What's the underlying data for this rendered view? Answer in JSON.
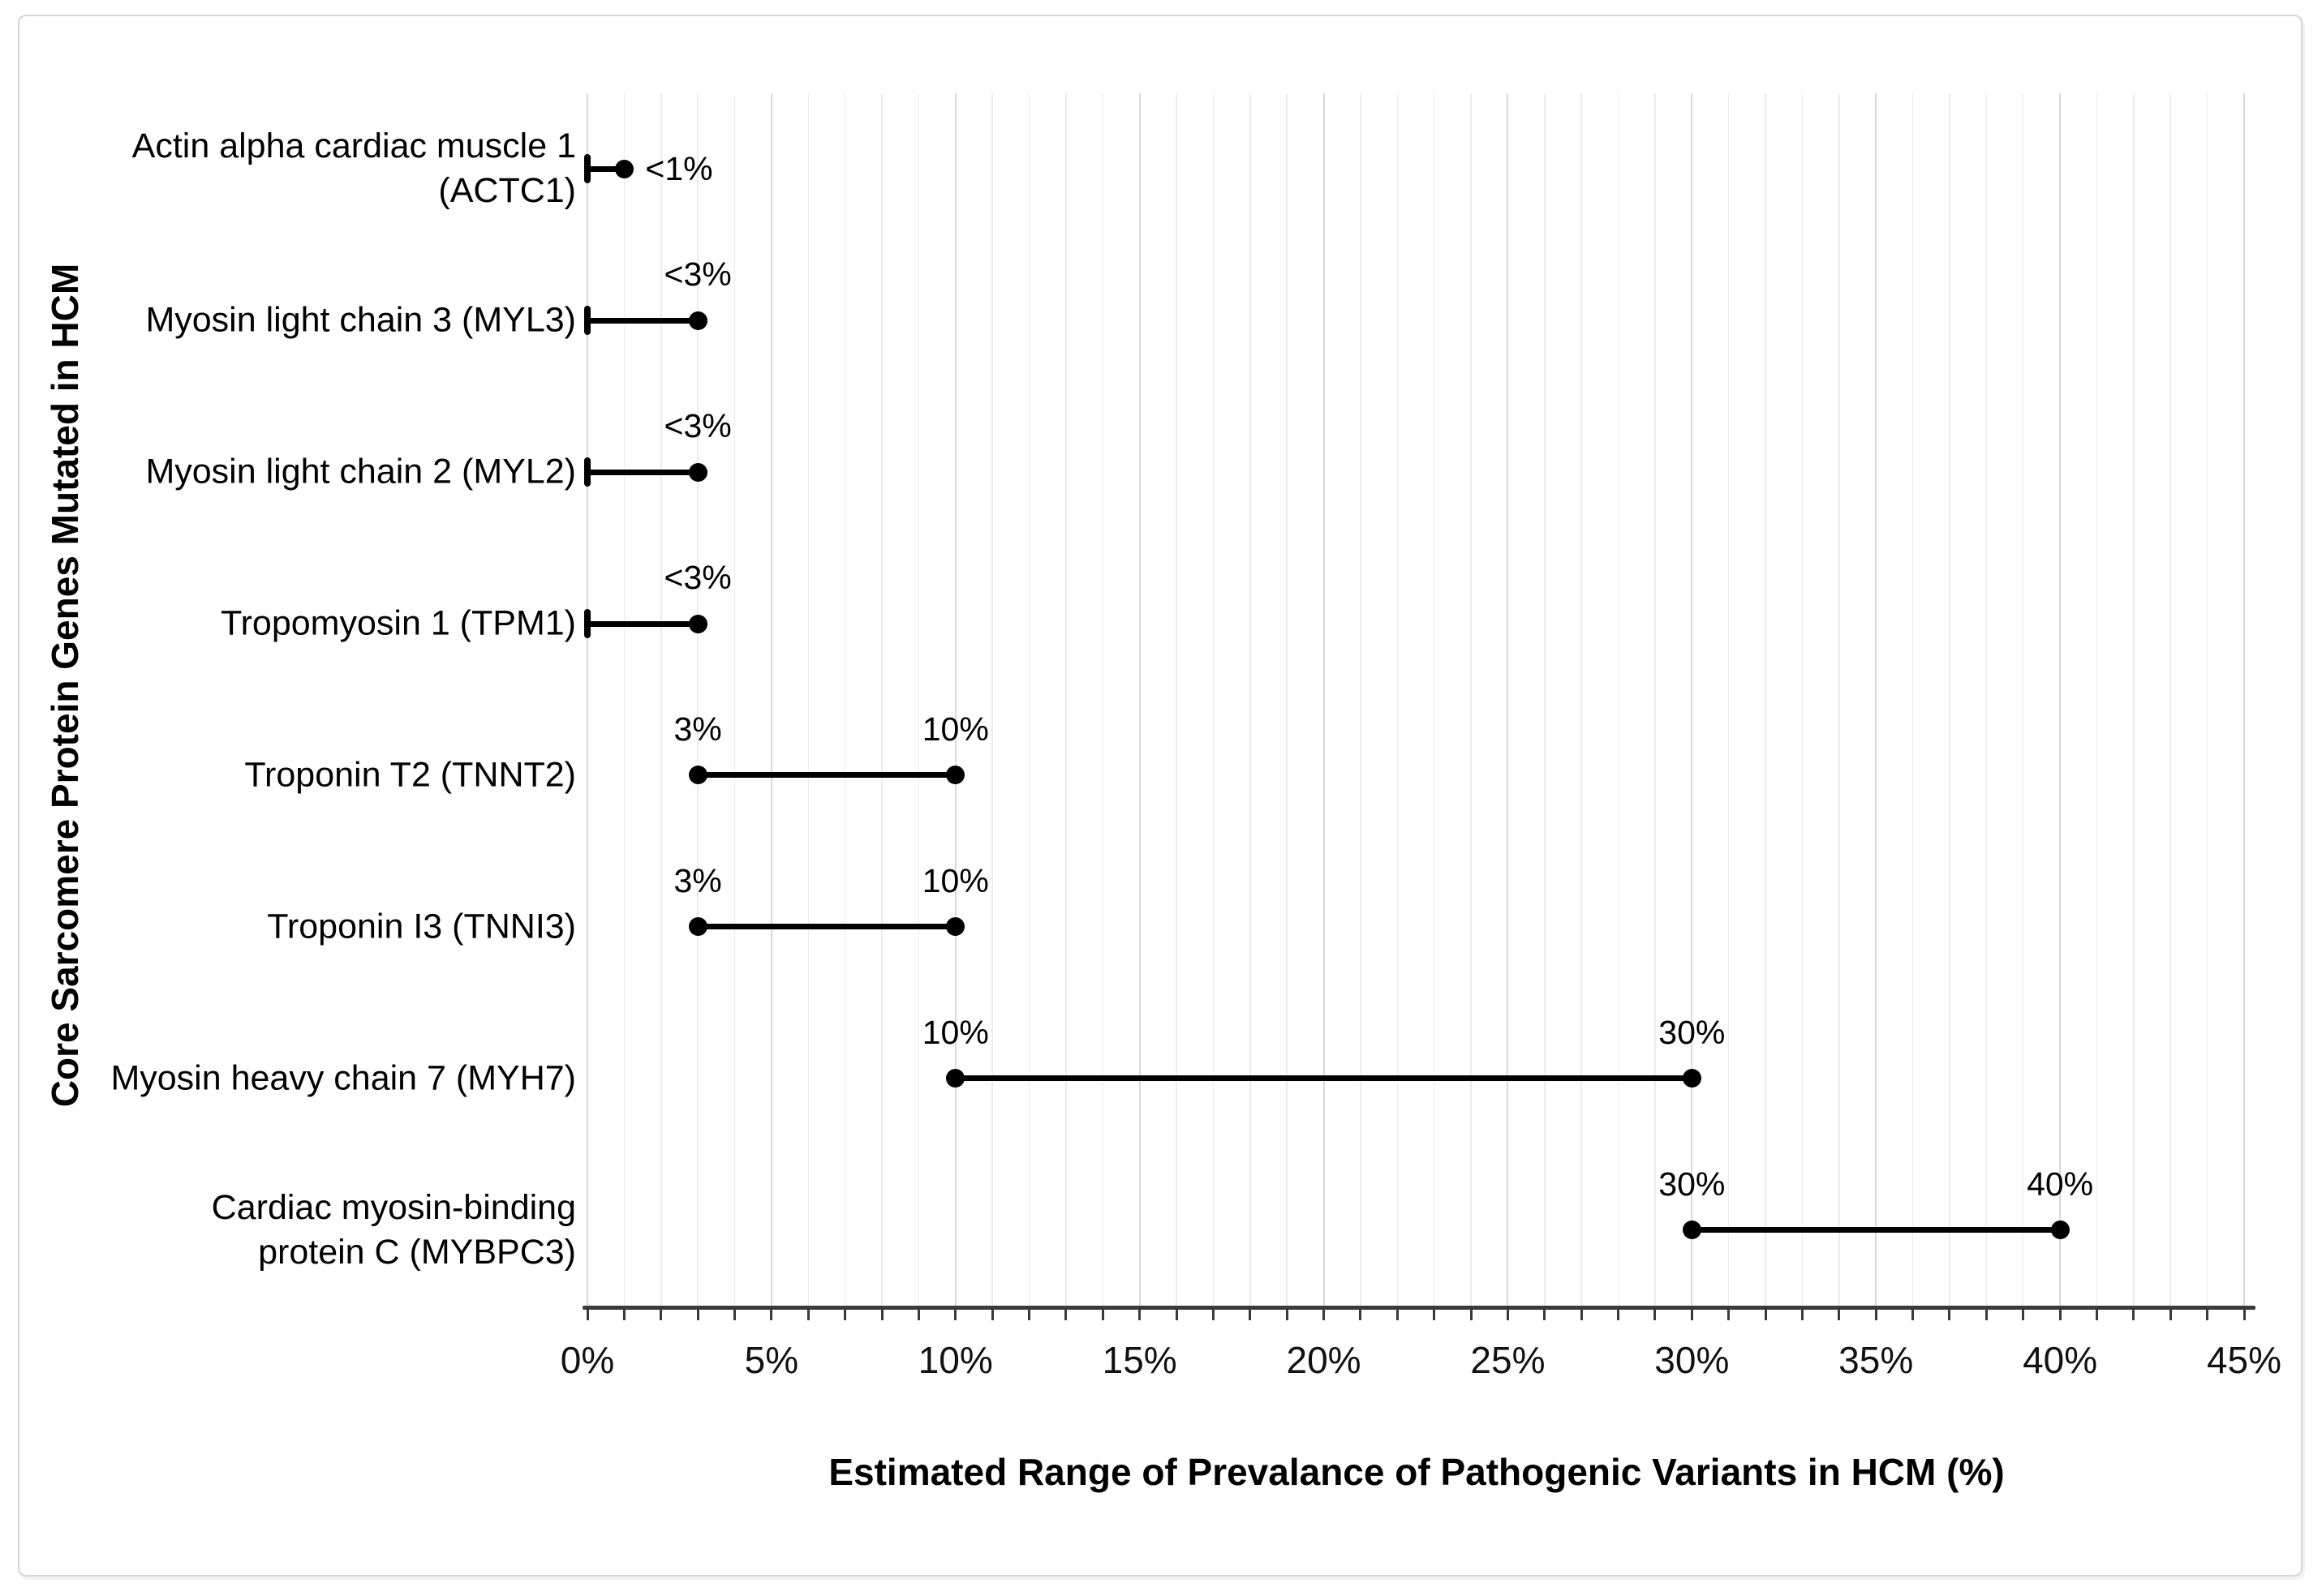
{
  "chart_data": {
    "type": "dumbbell",
    "title": "",
    "xlabel": "Estimated Range of Prevalance of Pathogenic Variants in HCM (%)",
    "ylabel": "Core Sarcomere Protein Genes Mutated in HCM",
    "xlim": [
      0,
      45
    ],
    "grid": true,
    "minor_gridline_step_pct": 1,
    "major_gridline_step_pct": 5,
    "x_tick_values": [
      0,
      5,
      10,
      15,
      20,
      25,
      30,
      35,
      40,
      45
    ],
    "x_tick_labels": [
      "0%",
      "5%",
      "10%",
      "15%",
      "20%",
      "25%",
      "30%",
      "35%",
      "40%",
      "45%"
    ],
    "legend": "none",
    "rows": [
      {
        "category": "Actin alpha cardiac muscle 1\n(ACTC1)",
        "gene": "ACTC1",
        "start": 0,
        "end": 1,
        "start_marker": "cap",
        "end_marker": "dot",
        "start_label": "",
        "end_label": "<1%",
        "label_placement": "right"
      },
      {
        "category": "Myosin light chain 3 (MYL3)",
        "gene": "MYL3",
        "start": 0,
        "end": 3,
        "start_marker": "cap",
        "end_marker": "dot",
        "start_label": "",
        "end_label": "<3%",
        "label_placement": "above"
      },
      {
        "category": "Myosin light chain 2 (MYL2)",
        "gene": "MYL2",
        "start": 0,
        "end": 3,
        "start_marker": "cap",
        "end_marker": "dot",
        "start_label": "",
        "end_label": "<3%",
        "label_placement": "above"
      },
      {
        "category": "Tropomyosin 1 (TPM1)",
        "gene": "TPM1",
        "start": 0,
        "end": 3,
        "start_marker": "cap",
        "end_marker": "dot",
        "start_label": "",
        "end_label": "<3%",
        "label_placement": "above"
      },
      {
        "category": "Troponin T2 (TNNT2)",
        "gene": "TNNT2",
        "start": 3,
        "end": 10,
        "start_marker": "dot",
        "end_marker": "dot",
        "start_label": "3%",
        "end_label": "10%",
        "label_placement": "above"
      },
      {
        "category": "Troponin I3 (TNNI3)",
        "gene": "TNNI3",
        "start": 3,
        "end": 10,
        "start_marker": "dot",
        "end_marker": "dot",
        "start_label": "3%",
        "end_label": "10%",
        "label_placement": "above"
      },
      {
        "category": "Myosin heavy chain 7 (MYH7)",
        "gene": "MYH7",
        "start": 10,
        "end": 30,
        "start_marker": "dot",
        "end_marker": "dot",
        "start_label": "10%",
        "end_label": "30%",
        "label_placement": "above"
      },
      {
        "category": "Cardiac myosin-binding\nprotein C (MYBPC3)",
        "gene": "MYBPC3",
        "start": 30,
        "end": 40,
        "start_marker": "dot",
        "end_marker": "dot",
        "start_label": "30%",
        "end_label": "40%",
        "label_placement": "above"
      }
    ],
    "colors": {
      "marker": "#000000",
      "range_line": "#000000",
      "axis": "#3a3a3a",
      "grid_minor": "#ececec",
      "grid_major": "#d9d9d9",
      "text": "#000000",
      "frame_border": "#d6d6d6",
      "background": "#ffffff"
    }
  }
}
